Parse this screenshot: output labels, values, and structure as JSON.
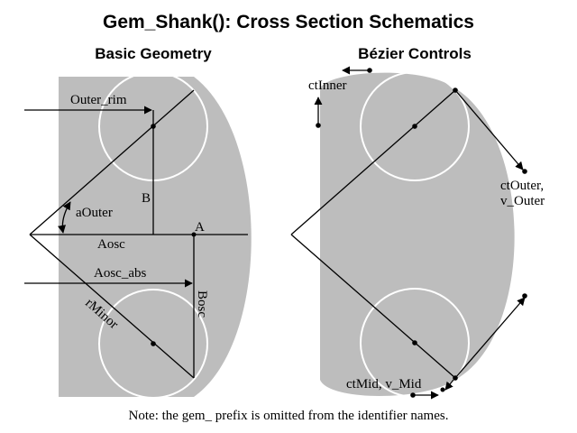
{
  "title": "Gem_Shank(): Cross Section Schematics",
  "left_panel": {
    "heading": "Basic Geometry",
    "labels": {
      "outer_rim": "Outer_rim",
      "b": "B",
      "a_outer": "aOuter",
      "a": "A",
      "aosc": "Aosc",
      "aosc_abs": "Aosc_abs",
      "r_minor": "rMinor",
      "bosc": "Bosc"
    }
  },
  "right_panel": {
    "heading": "Bézier Controls",
    "labels": {
      "ct_inner": "ctInner",
      "ct_outer": "ctOuter,",
      "v_outer": "v_Outer",
      "ct_mid": "ctMid, v_Mid"
    }
  },
  "note": "Note: the gem_ prefix is omitted from the identifier names.",
  "colors": {
    "shape_fill": "#bdbdbd",
    "circle_stroke": "#ffffff",
    "line": "#000000"
  }
}
